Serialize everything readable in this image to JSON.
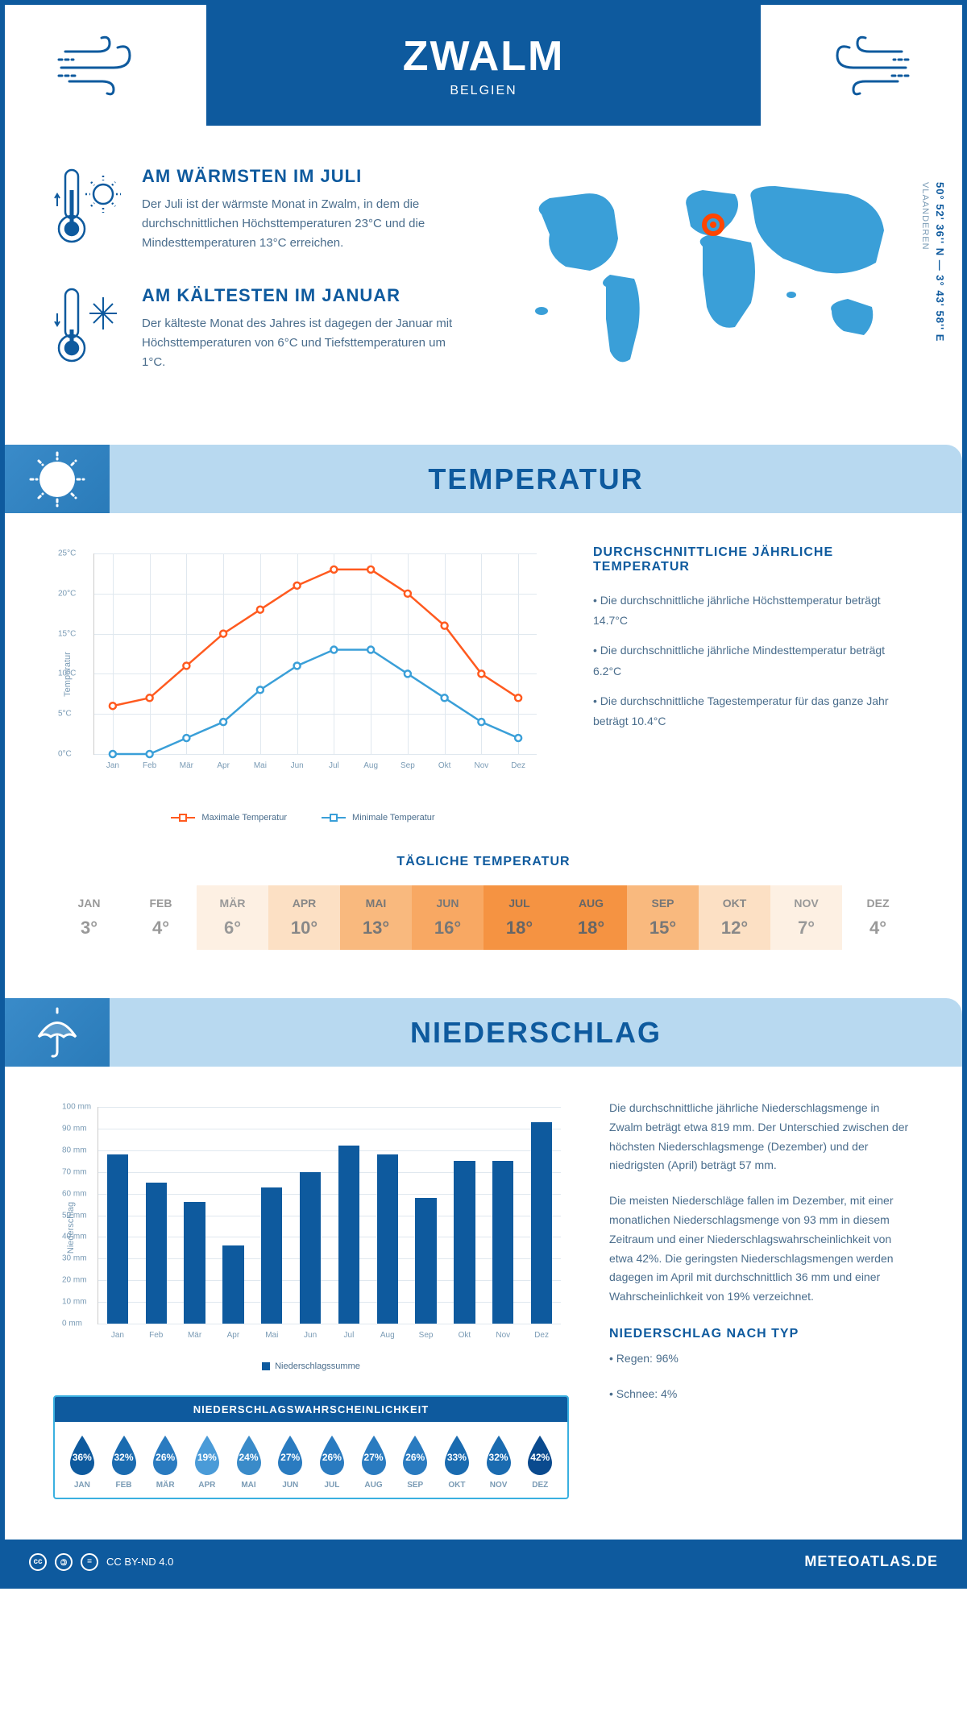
{
  "header": {
    "city": "ZWALM",
    "country": "BELGIEN"
  },
  "intro": {
    "warm": {
      "title": "AM WÄRMSTEN IM JULI",
      "text": "Der Juli ist der wärmste Monat in Zwalm, in dem die durchschnittlichen Höchsttemperaturen 23°C und die Mindesttemperaturen 13°C erreichen."
    },
    "cold": {
      "title": "AM KÄLTESTEN IM JANUAR",
      "text": "Der kälteste Monat des Jahres ist dagegen der Januar mit Höchsttemperaturen von 6°C und Tiefsttemperaturen um 1°C."
    },
    "coords": "50° 52' 36'' N — 3° 43' 58'' E",
    "region": "VLAANDEREN"
  },
  "sections": {
    "temp_title": "TEMPERATUR",
    "precip_title": "NIEDERSCHLAG"
  },
  "temp_chart": {
    "type": "line",
    "y_label": "Temperatur",
    "y_min": 0,
    "y_max": 25,
    "y_step": 5,
    "months": [
      "Jan",
      "Feb",
      "Mär",
      "Apr",
      "Mai",
      "Jun",
      "Jul",
      "Aug",
      "Sep",
      "Okt",
      "Nov",
      "Dez"
    ],
    "max_series": {
      "label": "Maximale Temperatur",
      "color": "#ff5a1f",
      "values": [
        6,
        7,
        11,
        15,
        18,
        21,
        23,
        23,
        20,
        16,
        10,
        7
      ]
    },
    "min_series": {
      "label": "Minimale Temperatur",
      "color": "#3a9fd8",
      "values": [
        0,
        0,
        2,
        4,
        8,
        11,
        13,
        13,
        10,
        7,
        4,
        2
      ]
    },
    "grid_color": "#e0e8ef"
  },
  "temp_info": {
    "title": "DURCHSCHNITTLICHE JÄHRLICHE TEMPERATUR",
    "bullets": [
      "• Die durchschnittliche jährliche Höchsttemperatur beträgt 14.7°C",
      "• Die durchschnittliche jährliche Mindesttemperatur beträgt 6.2°C",
      "• Die durchschnittliche Tagestemperatur für das ganze Jahr beträgt 10.4°C"
    ]
  },
  "daily_temp": {
    "title": "TÄGLICHE TEMPERATUR",
    "months": [
      "JAN",
      "FEB",
      "MÄR",
      "APR",
      "MAI",
      "JUN",
      "JUL",
      "AUG",
      "SEP",
      "OKT",
      "NOV",
      "DEZ"
    ],
    "temps": [
      "3°",
      "4°",
      "6°",
      "10°",
      "13°",
      "16°",
      "18°",
      "18°",
      "15°",
      "12°",
      "7°",
      "4°"
    ],
    "bg_colors": [
      "#ffffff",
      "#ffffff",
      "#fdf0e3",
      "#fce0c4",
      "#f9b97e",
      "#f8a863",
      "#f59342",
      "#f59342",
      "#f9b97e",
      "#fce0c4",
      "#fdf0e3",
      "#ffffff"
    ],
    "text_colors": [
      "#999",
      "#999",
      "#999",
      "#888",
      "#777",
      "#777",
      "#666",
      "#666",
      "#777",
      "#888",
      "#999",
      "#999"
    ]
  },
  "precip_chart": {
    "type": "bar",
    "y_label": "Niederschlag",
    "y_min": 0,
    "y_max": 100,
    "y_step": 10,
    "months": [
      "Jan",
      "Feb",
      "Mär",
      "Apr",
      "Mai",
      "Jun",
      "Jul",
      "Aug",
      "Sep",
      "Okt",
      "Nov",
      "Dez"
    ],
    "values": [
      78,
      65,
      56,
      36,
      63,
      70,
      82,
      78,
      58,
      75,
      75,
      93
    ],
    "bar_color": "#0e5a9e",
    "legend": "Niederschlagssumme"
  },
  "precip_info": {
    "para1": "Die durchschnittliche jährliche Niederschlagsmenge in Zwalm beträgt etwa 819 mm. Der Unterschied zwischen der höchsten Niederschlagsmenge (Dezember) und der niedrigsten (April) beträgt 57 mm.",
    "para2": "Die meisten Niederschläge fallen im Dezember, mit einer monatlichen Niederschlagsmenge von 93 mm in diesem Zeitraum und einer Niederschlagswahrscheinlichkeit von etwa 42%. Die geringsten Niederschlagsmengen werden dagegen im April mit durchschnittlich 36 mm und einer Wahrscheinlichkeit von 19% verzeichnet.",
    "type_title": "NIEDERSCHLAG NACH TYP",
    "type_rain": "• Regen: 96%",
    "type_snow": "• Schnee: 4%"
  },
  "prob": {
    "title": "NIEDERSCHLAGSWAHRSCHEINLICHKEIT",
    "months": [
      "JAN",
      "FEB",
      "MÄR",
      "APR",
      "MAI",
      "JUN",
      "JUL",
      "AUG",
      "SEP",
      "OKT",
      "NOV",
      "DEZ"
    ],
    "pcts": [
      "36%",
      "32%",
      "26%",
      "19%",
      "24%",
      "27%",
      "26%",
      "27%",
      "26%",
      "33%",
      "32%",
      "42%"
    ],
    "colors": [
      "#0e5a9e",
      "#1a6bb0",
      "#2a7bc0",
      "#4a9bd8",
      "#3a8bc9",
      "#2a7bc0",
      "#2a7bc0",
      "#2a7bc0",
      "#2a7bc0",
      "#1a6bb0",
      "#1a6bb0",
      "#0a4a8e"
    ]
  },
  "footer": {
    "license": "CC BY-ND 4.0",
    "site": "METEOATLAS.DE"
  }
}
